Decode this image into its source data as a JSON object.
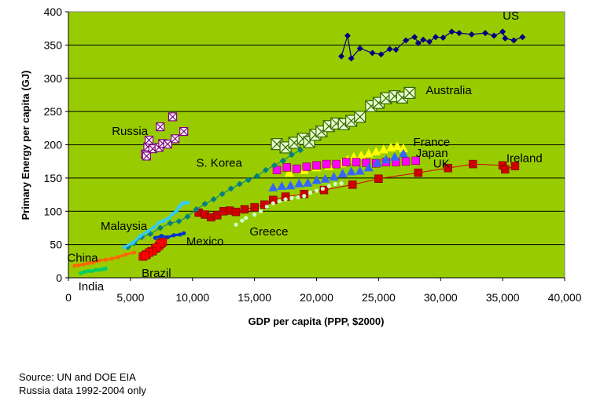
{
  "chart_data": {
    "type": "scatter",
    "title": "",
    "xlabel": "GDP per capita (PPP, $2000)",
    "ylabel": "Primary Energy per capita (GJ)",
    "xlim": [
      0,
      40000
    ],
    "ylim": [
      0,
      400
    ],
    "x_ticks": [
      0,
      5000,
      10000,
      15000,
      20000,
      25000,
      30000,
      35000,
      40000
    ],
    "x_tick_labels": [
      "0",
      "5,000",
      "10,000",
      "15,000",
      "20,000",
      "25,000",
      "30,000",
      "35,000",
      "40,000"
    ],
    "y_ticks": [
      0,
      50,
      100,
      150,
      200,
      250,
      300,
      350,
      400
    ],
    "y_tick_labels": [
      "0",
      "50",
      "100",
      "150",
      "200",
      "250",
      "300",
      "350",
      "400"
    ],
    "grid": "horizontal",
    "plot_background": "#99cc00",
    "series": [
      {
        "name": "US",
        "color": "#000080",
        "marker": "diamond",
        "line": true,
        "x": [
          22000,
          22500,
          22800,
          23500,
          24500,
          25200,
          25900,
          26400,
          27200,
          27900,
          28200,
          28600,
          29100,
          29600,
          30200,
          30900,
          31500,
          32500,
          33600,
          34300,
          35000,
          35200,
          35900,
          36600
        ],
        "y": [
          333,
          364,
          330,
          345,
          338,
          336,
          344,
          343,
          357,
          362,
          353,
          358,
          355,
          362,
          361,
          370,
          368,
          366,
          368,
          364,
          370,
          360,
          357,
          362
        ]
      },
      {
        "name": "Australia",
        "color": "#336600",
        "marker": "xbox",
        "line": false,
        "x": [
          16800,
          17500,
          18200,
          18900,
          19400,
          19900,
          20400,
          21000,
          21600,
          22200,
          22800,
          23500,
          24400,
          25000,
          25600,
          26300,
          26900,
          27500
        ],
        "y": [
          201,
          196,
          203,
          209,
          204,
          215,
          220,
          228,
          232,
          231,
          236,
          242,
          258,
          263,
          270,
          273,
          271,
          278
        ]
      },
      {
        "name": "France",
        "color": "#ffff00",
        "marker": "triangle",
        "line": false,
        "x": [
          17800,
          19000,
          20000,
          21000,
          22000,
          22500,
          23000,
          23600,
          24200,
          24800,
          25400,
          26000,
          26500,
          27000
        ],
        "y": [
          158,
          162,
          166,
          168,
          172,
          178,
          182,
          184,
          187,
          190,
          193,
          196,
          198,
          195
        ]
      },
      {
        "name": "Japan",
        "color": "#ff00ff",
        "marker": "square",
        "line": false,
        "x": [
          16800,
          17600,
          18400,
          19200,
          20000,
          20800,
          21600,
          22400,
          23200,
          24000,
          24800,
          25600,
          26400,
          27200,
          28000
        ],
        "y": [
          162,
          166,
          164,
          167,
          169,
          171,
          171,
          174,
          174,
          173,
          172,
          174,
          174,
          175,
          176
        ]
      },
      {
        "name": "UK",
        "color": "#3366ff",
        "marker": "triangle",
        "line": false,
        "x": [
          16500,
          17200,
          17900,
          18600,
          19300,
          20000,
          20700,
          21400,
          22100,
          22800,
          23500,
          24200,
          24900,
          25600,
          26300,
          27000
        ],
        "y": [
          136,
          138,
          139,
          142,
          143,
          147,
          149,
          152,
          157,
          160,
          161,
          166,
          173,
          178,
          182,
          187
        ]
      },
      {
        "name": "Ireland",
        "color": "#cc0000",
        "marker": "square",
        "line": true,
        "x": [
          10500,
          11000,
          11500,
          12000,
          12500,
          13000,
          13500,
          14200,
          15000,
          15800,
          16500,
          17500,
          19000,
          20600,
          22900,
          25000,
          28200,
          30600,
          32600,
          35000,
          35200,
          36000
        ],
        "y": [
          98,
          95,
          91,
          94,
          100,
          101,
          99,
          103,
          106,
          110,
          117,
          122,
          126,
          132,
          140,
          149,
          158,
          165,
          171,
          169,
          163,
          168
        ]
      },
      {
        "name": "Greece",
        "color": "#ccffcc",
        "marker": "dot",
        "line": false,
        "x": [
          13500,
          14000,
          14300,
          15000,
          15500,
          16000,
          16500,
          17000,
          17500,
          18000,
          18500,
          19000,
          19500,
          20000,
          20500,
          21000,
          21500,
          22000
        ],
        "y": [
          80,
          86,
          90,
          95,
          100,
          107,
          112,
          115,
          118,
          120,
          121,
          123,
          128,
          131,
          134,
          138,
          141,
          142
        ]
      },
      {
        "name": "S. Korea",
        "color": "#008080",
        "marker": "diamond",
        "line": true,
        "x": [
          4800,
          5300,
          5900,
          6600,
          7400,
          8200,
          8900,
          9600,
          10300,
          11000,
          11700,
          12400,
          13100,
          13800,
          14500,
          15200,
          15900,
          16600,
          17300,
          18000,
          18700
        ],
        "y": [
          46,
          52,
          61,
          66,
          75,
          82,
          85,
          92,
          103,
          111,
          118,
          126,
          134,
          141,
          147,
          153,
          162,
          169,
          176,
          185,
          192
        ]
      },
      {
        "name": "Malaysia",
        "color": "#33ccff",
        "marker": "dot",
        "line": true,
        "x": [
          4500,
          5200,
          5800,
          6400,
          6900,
          7300,
          7700,
          8100,
          8400,
          8700,
          8900,
          9100,
          9300,
          9600
        ],
        "y": [
          46,
          53,
          63,
          70,
          76,
          83,
          86,
          90,
          96,
          100,
          106,
          110,
          113,
          113
        ]
      },
      {
        "name": "Mexico",
        "color": "#0033cc",
        "marker": "dot",
        "line": true,
        "x": [
          7000,
          7500,
          8000,
          8500,
          9000,
          9300
        ],
        "y": [
          60,
          63,
          61,
          64,
          65,
          67
        ]
      },
      {
        "name": "Brazil",
        "color": "#ff0000",
        "marker": "square",
        "line": true,
        "x": [
          6000,
          6300,
          6700,
          7000,
          7300,
          7500,
          7600,
          7400,
          7100,
          6800,
          6500,
          6200
        ],
        "y": [
          32,
          35,
          40,
          44,
          48,
          52,
          54,
          51,
          45,
          40,
          38,
          34
        ]
      },
      {
        "name": "China",
        "color": "#ff6600",
        "marker": "dot",
        "line": true,
        "x": [
          500,
          800,
          1200,
          1600,
          2000,
          2500,
          3000,
          3500,
          4000,
          4600,
          5300
        ],
        "y": [
          18,
          19,
          20,
          22,
          23,
          26,
          27,
          29,
          31,
          35,
          38
        ]
      },
      {
        "name": "India",
        "color": "#00cc66",
        "marker": "dot",
        "line": true,
        "x": [
          1000,
          1300,
          1600,
          1900,
          2200,
          2500,
          2800,
          3000
        ],
        "y": [
          7,
          9,
          10,
          10,
          12,
          12,
          13,
          14
        ]
      },
      {
        "name": "Russia",
        "color": "#800080",
        "marker": "xbox",
        "line": false,
        "x": [
          6200,
          6400,
          6800,
          7300,
          7600,
          8000,
          8600,
          9300,
          6500,
          7400,
          8400,
          6300
        ],
        "y": [
          186,
          197,
          194,
          196,
          202,
          201,
          209,
          220,
          207,
          227,
          242,
          183
        ]
      }
    ],
    "annotations": [
      {
        "text": "US",
        "x": 35000,
        "y": 388
      },
      {
        "text": "Australia",
        "x": 28800,
        "y": 276
      },
      {
        "text": "Russia",
        "x": 3500,
        "y": 215
      },
      {
        "text": "France",
        "x": 27800,
        "y": 198
      },
      {
        "text": "Japan",
        "x": 28000,
        "y": 182
      },
      {
        "text": "UK",
        "x": 29400,
        "y": 166
      },
      {
        "text": "Ireland",
        "x": 35300,
        "y": 174
      },
      {
        "text": "S. Korea",
        "x": 10300,
        "y": 167
      },
      {
        "text": "Greece",
        "x": 14600,
        "y": 64
      },
      {
        "text": "Malaysia",
        "x": 2600,
        "y": 72
      },
      {
        "text": "Mexico",
        "x": 9500,
        "y": 49
      },
      {
        "text": "China",
        "x": -100,
        "y": 24
      },
      {
        "text": "Brazil",
        "x": 5900,
        "y": 1
      },
      {
        "text": "India",
        "x": 800,
        "y": -19
      }
    ]
  },
  "notes": {
    "source": "Source: UN and DOE EIA",
    "russia": "Russia data 1992-2004 only"
  }
}
